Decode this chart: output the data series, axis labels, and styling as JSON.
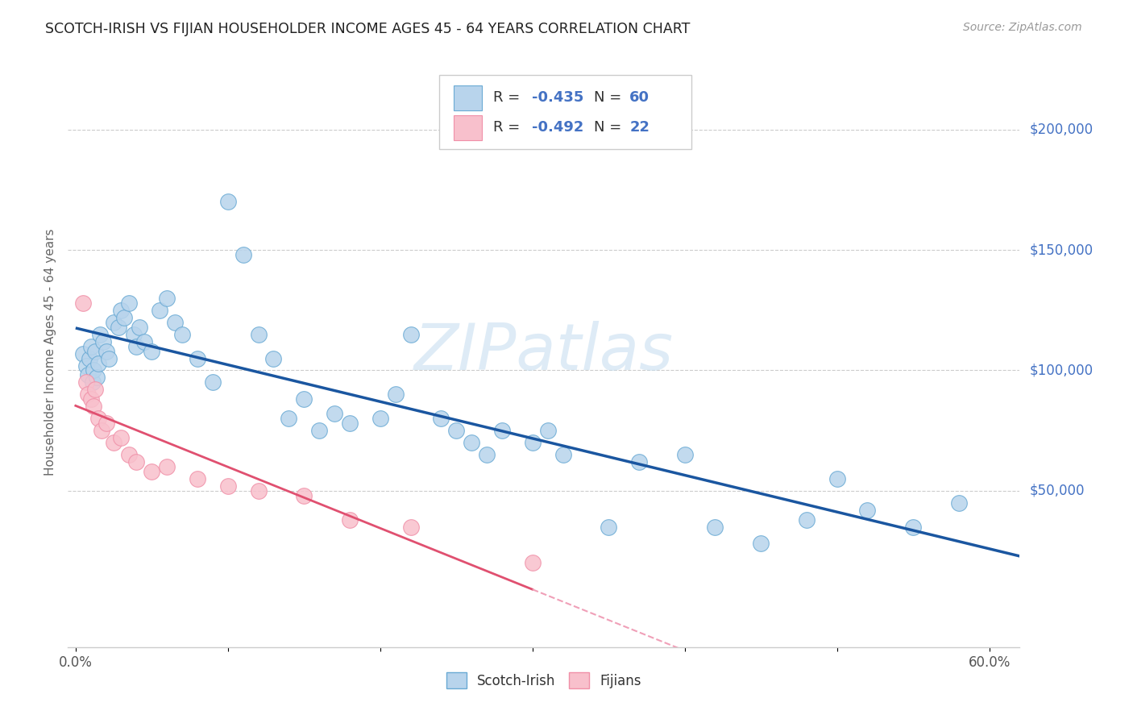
{
  "title": "SCOTCH-IRISH VS FIJIAN HOUSEHOLDER INCOME AGES 45 - 64 YEARS CORRELATION CHART",
  "source": "Source: ZipAtlas.com",
  "ylabel": "Householder Income Ages 45 - 64 years",
  "xlim": [
    -0.005,
    0.62
  ],
  "ylim": [
    -15000,
    230000
  ],
  "xticks": [
    0.0,
    0.1,
    0.2,
    0.3,
    0.4,
    0.5,
    0.6
  ],
  "xticklabels": [
    "0.0%",
    "",
    "",
    "",
    "",
    "",
    "60.0%"
  ],
  "ytick_labels_right": [
    "$50,000",
    "$100,000",
    "$150,000",
    "$200,000"
  ],
  "ytick_values_right": [
    50000,
    100000,
    150000,
    200000
  ],
  "grid_color": "#cccccc",
  "background_color": "#ffffff",
  "scotch_irish_face": "#b8d4ec",
  "scotch_irish_edge": "#6aaad4",
  "fijian_face": "#f8c0cc",
  "fijian_edge": "#f090a8",
  "blue_line_color": "#1a56a0",
  "pink_line_color": "#e05070",
  "pink_dash_color": "#f0a0b8",
  "watermark_text": "ZIPatlas",
  "watermark_color": "#c8dff0",
  "legend_r_color": "#4472c4",
  "legend_n_color": "#4472c4",
  "scotch_irish_x": [
    0.005,
    0.007,
    0.008,
    0.009,
    0.01,
    0.011,
    0.012,
    0.013,
    0.014,
    0.015,
    0.016,
    0.018,
    0.02,
    0.022,
    0.025,
    0.028,
    0.03,
    0.032,
    0.035,
    0.038,
    0.04,
    0.042,
    0.045,
    0.05,
    0.055,
    0.06,
    0.065,
    0.07,
    0.08,
    0.09,
    0.1,
    0.11,
    0.12,
    0.13,
    0.14,
    0.15,
    0.16,
    0.17,
    0.18,
    0.2,
    0.21,
    0.22,
    0.24,
    0.25,
    0.26,
    0.27,
    0.28,
    0.3,
    0.31,
    0.32,
    0.35,
    0.37,
    0.4,
    0.42,
    0.45,
    0.48,
    0.5,
    0.52,
    0.55,
    0.58
  ],
  "scotch_irish_y": [
    107000,
    102000,
    98000,
    105000,
    110000,
    95000,
    100000,
    108000,
    97000,
    103000,
    115000,
    112000,
    108000,
    105000,
    120000,
    118000,
    125000,
    122000,
    128000,
    115000,
    110000,
    118000,
    112000,
    108000,
    125000,
    130000,
    120000,
    115000,
    105000,
    95000,
    170000,
    148000,
    115000,
    105000,
    80000,
    88000,
    75000,
    82000,
    78000,
    80000,
    90000,
    115000,
    80000,
    75000,
    70000,
    65000,
    75000,
    70000,
    75000,
    65000,
    35000,
    62000,
    65000,
    35000,
    28000,
    38000,
    55000,
    42000,
    35000,
    45000
  ],
  "fijian_x": [
    0.005,
    0.007,
    0.008,
    0.01,
    0.012,
    0.013,
    0.015,
    0.017,
    0.02,
    0.025,
    0.03,
    0.035,
    0.04,
    0.05,
    0.06,
    0.08,
    0.1,
    0.12,
    0.15,
    0.18,
    0.22,
    0.3
  ],
  "fijian_y": [
    128000,
    95000,
    90000,
    88000,
    85000,
    92000,
    80000,
    75000,
    78000,
    70000,
    72000,
    65000,
    62000,
    58000,
    60000,
    55000,
    52000,
    50000,
    48000,
    38000,
    35000,
    20000
  ]
}
